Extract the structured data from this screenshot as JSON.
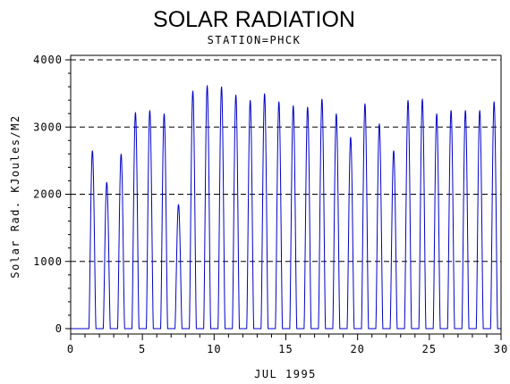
{
  "chart_data": {
    "type": "line",
    "title": "SOLAR RADIATION",
    "subtitle": "STATION=PHCK",
    "xlabel": "JUL 1995",
    "ylabel": "Solar Rad. KJoules/M2",
    "xlim": [
      0,
      30
    ],
    "ylim": [
      0,
      4000
    ],
    "x_ticks": [
      0,
      5,
      10,
      15,
      20,
      25,
      30
    ],
    "y_ticks": [
      0,
      1000,
      2000,
      3000,
      4000
    ],
    "grid": "horizontal dashed at y ticks",
    "line_color": "#0000cc",
    "series": [
      {
        "daily_peaks": [
          {
            "day": 1,
            "peak": 2650
          },
          {
            "day": 2,
            "peak": 2180
          },
          {
            "day": 3,
            "peak": 2600
          },
          {
            "day": 4,
            "peak": 3220
          },
          {
            "day": 5,
            "peak": 3250
          },
          {
            "day": 6,
            "peak": 3200
          },
          {
            "day": 7,
            "peak": 1850
          },
          {
            "day": 8,
            "peak": 3540
          },
          {
            "day": 9,
            "peak": 3620
          },
          {
            "day": 10,
            "peak": 3600
          },
          {
            "day": 11,
            "peak": 3480
          },
          {
            "day": 12,
            "peak": 3400
          },
          {
            "day": 13,
            "peak": 3500
          },
          {
            "day": 14,
            "peak": 3380
          },
          {
            "day": 15,
            "peak": 3320
          },
          {
            "day": 16,
            "peak": 3300
          },
          {
            "day": 17,
            "peak": 3420
          },
          {
            "day": 18,
            "peak": 3200
          },
          {
            "day": 19,
            "peak": 2850
          },
          {
            "day": 20,
            "peak": 3350
          },
          {
            "day": 21,
            "peak": 3050
          },
          {
            "day": 22,
            "peak": 2650
          },
          {
            "day": 23,
            "peak": 3400
          },
          {
            "day": 24,
            "peak": 3420
          },
          {
            "day": 25,
            "peak": 3200
          },
          {
            "day": 26,
            "peak": 3250
          },
          {
            "day": 27,
            "peak": 3250
          },
          {
            "day": 28,
            "peak": 3250
          },
          {
            "day": 29,
            "peak": 3380
          }
        ]
      }
    ]
  }
}
